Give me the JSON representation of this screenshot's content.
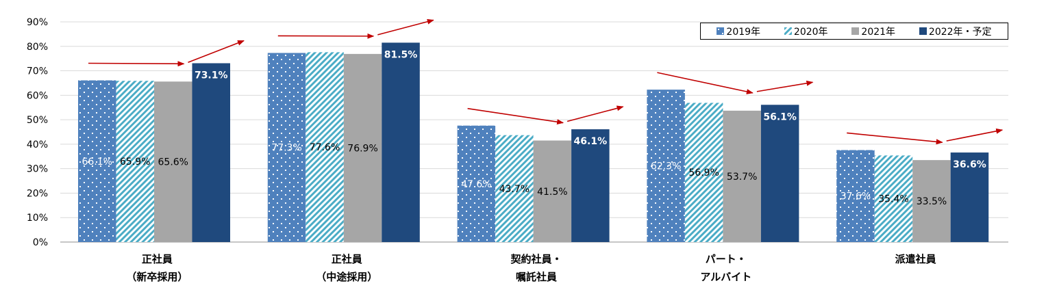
{
  "chart_data": {
    "type": "bar",
    "categories": [
      {
        "line1": "正社員",
        "line2": "（新卒採用）"
      },
      {
        "line1": "正社員",
        "line2": "（中途採用）"
      },
      {
        "line1": "契約社員・",
        "line2": "嘱託社員"
      },
      {
        "line1": "パート・",
        "line2": "アルバイト"
      },
      {
        "line1": "派遣社員",
        "line2": ""
      }
    ],
    "series": [
      {
        "name": "2019年",
        "values": [
          66.1,
          77.3,
          47.6,
          62.3,
          37.6
        ],
        "color": "#4f81bd",
        "pattern": "dots"
      },
      {
        "name": "2020年",
        "values": [
          65.9,
          77.6,
          43.7,
          56.9,
          35.4
        ],
        "color": "#4bacc6",
        "pattern": "diagonal"
      },
      {
        "name": "2021年",
        "values": [
          65.6,
          76.9,
          41.5,
          53.7,
          33.5
        ],
        "color": "#a6a6a6",
        "pattern": "solid"
      },
      {
        "name": "2022年・予定",
        "values": [
          73.1,
          81.5,
          46.1,
          56.1,
          36.6
        ],
        "color": "#1f497d",
        "pattern": "solid"
      }
    ],
    "y_ticks": [
      "0%",
      "10%",
      "20%",
      "30%",
      "40%",
      "50%",
      "60%",
      "70%",
      "80%",
      "90%"
    ],
    "ylim": [
      0,
      90
    ],
    "grid": true,
    "legend_position": "top-right",
    "data_label_suffix": "%",
    "trend_arrows": [
      {
        "category": 0,
        "from": 65.6,
        "to": 73.1
      },
      {
        "category": 1,
        "from": 76.9,
        "to": 81.5
      },
      {
        "category": 2,
        "from": 41.5,
        "to": 46.1
      },
      {
        "category": 3,
        "from": 53.7,
        "to": 56.1
      },
      {
        "category": 4,
        "from": 33.5,
        "to": 36.6
      }
    ],
    "arrow_color": "#c00000"
  }
}
